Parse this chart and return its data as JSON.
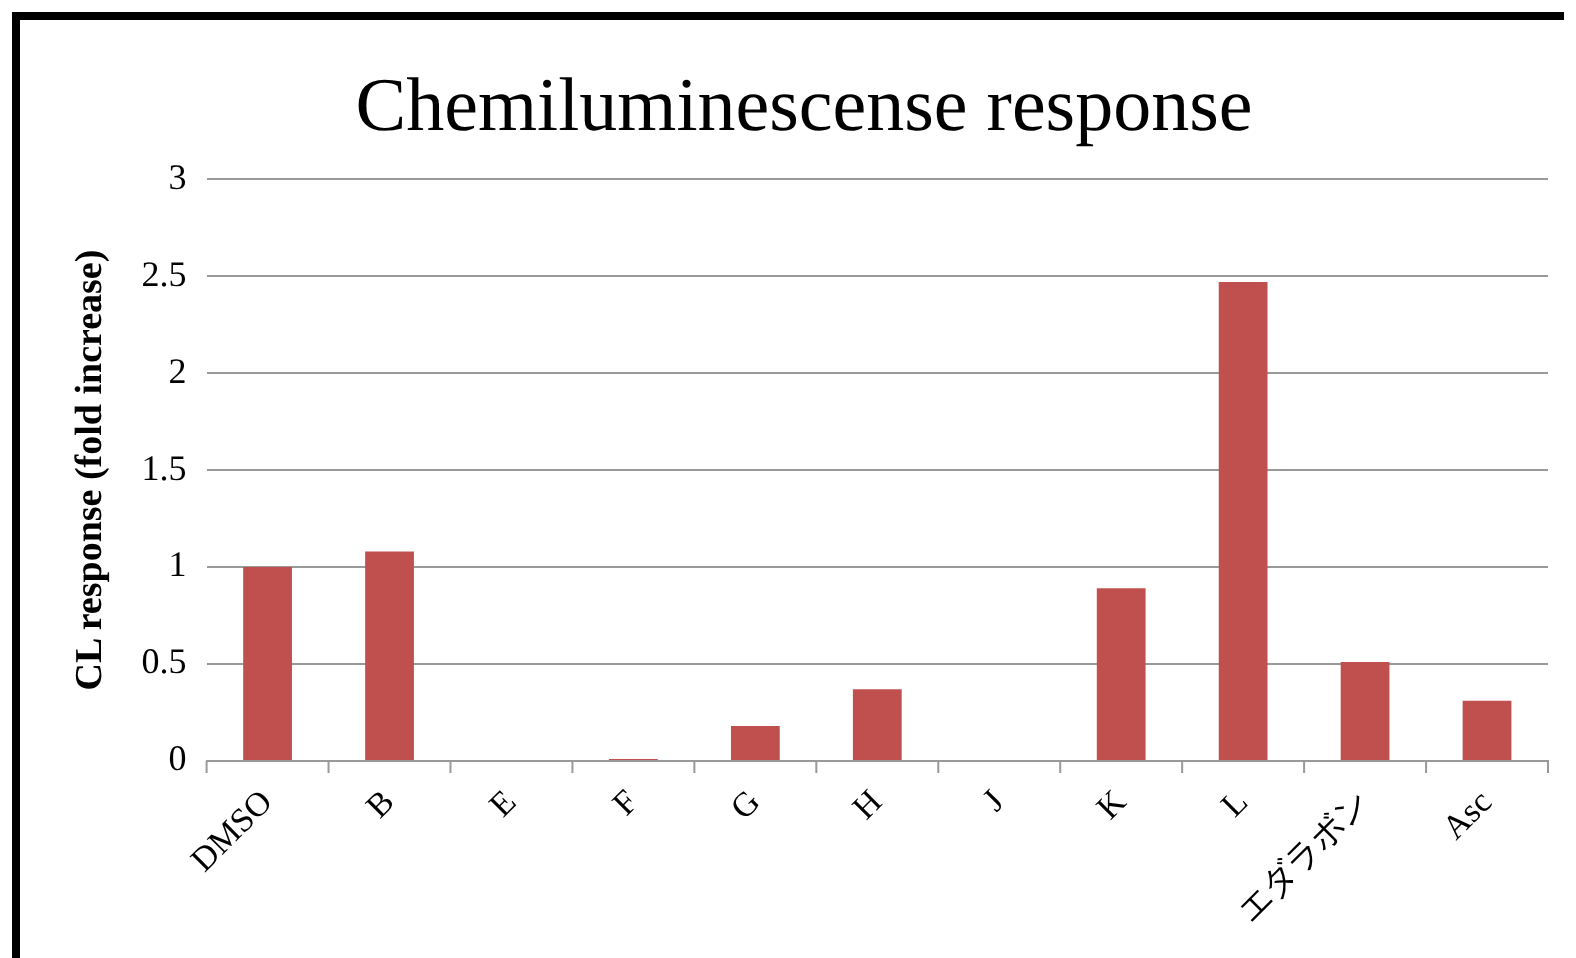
{
  "chart_data": {
    "type": "bar",
    "title": "Chemiluminescense response",
    "ylabel": "CL response (fold increase)",
    "categories": [
      "DMSO",
      "B",
      "E",
      "F",
      "G",
      "H",
      "J",
      "K",
      "L",
      "エダラボン",
      "Asc"
    ],
    "values": [
      1.0,
      1.08,
      0.0,
      0.01,
      0.18,
      0.37,
      0.0,
      0.89,
      2.47,
      0.51,
      0.31
    ],
    "color": "#c0504d",
    "ylim": [
      0,
      3
    ],
    "yticks": [
      0,
      0.5,
      1,
      1.5,
      2,
      2.5,
      3
    ],
    "grid": "y",
    "legend": false
  }
}
